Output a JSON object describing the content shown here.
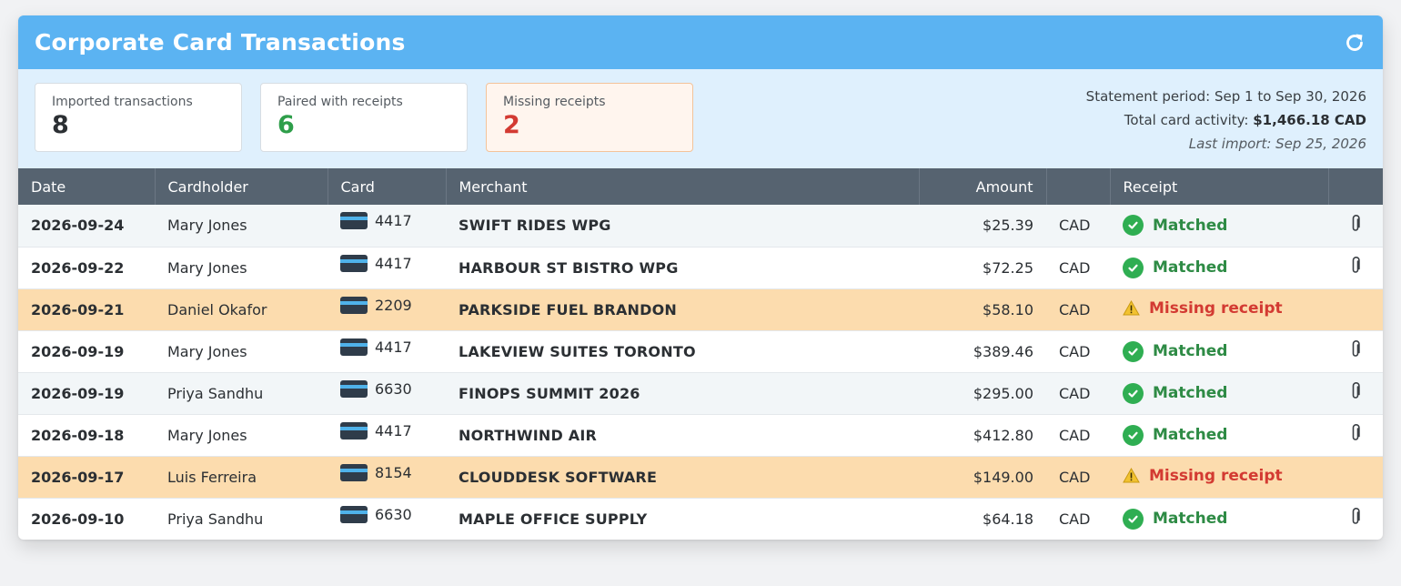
{
  "header": {
    "title": "Corporate Card Transactions"
  },
  "summary": {
    "imported": {
      "label": "Imported transactions",
      "value": "8"
    },
    "paired": {
      "label": "Paired with receipts",
      "value": "6"
    },
    "missing": {
      "label": "Missing receipts",
      "value": "2"
    },
    "period_label": "Statement period: Sep 1 to Sep 30, 2026",
    "total_label": "Total card activity: ",
    "total_value": "$1,466.18 CAD",
    "last_import": "Last import: Sep 25, 2026"
  },
  "table": {
    "columns": [
      "Date",
      "Cardholder",
      "Card",
      "Merchant",
      "Amount",
      "",
      "Receipt",
      ""
    ],
    "rows": [
      {
        "date": "2026-09-24",
        "cardholder": "Mary Jones",
        "card": "4417",
        "merchant": "SWIFT RIDES WPG",
        "amount": "$25.39",
        "currency": "CAD",
        "receipt": "Matched",
        "status": "matched"
      },
      {
        "date": "2026-09-22",
        "cardholder": "Mary Jones",
        "card": "4417",
        "merchant": "HARBOUR ST BISTRO WPG",
        "amount": "$72.25",
        "currency": "CAD",
        "receipt": "Matched",
        "status": "matched"
      },
      {
        "date": "2026-09-21",
        "cardholder": "Daniel Okafor",
        "card": "2209",
        "merchant": "PARKSIDE FUEL BRANDON",
        "amount": "$58.10",
        "currency": "CAD",
        "receipt": "Missing receipt",
        "status": "missing"
      },
      {
        "date": "2026-09-19",
        "cardholder": "Mary Jones",
        "card": "4417",
        "merchant": "LAKEVIEW SUITES TORONTO",
        "amount": "$389.46",
        "currency": "CAD",
        "receipt": "Matched",
        "status": "matched"
      },
      {
        "date": "2026-09-19",
        "cardholder": "Priya Sandhu",
        "card": "6630",
        "merchant": "FINOPS SUMMIT 2026",
        "amount": "$295.00",
        "currency": "CAD",
        "receipt": "Matched",
        "status": "matched"
      },
      {
        "date": "2026-09-18",
        "cardholder": "Mary Jones",
        "card": "4417",
        "merchant": "NORTHWIND AIR",
        "amount": "$412.80",
        "currency": "CAD",
        "receipt": "Matched",
        "status": "matched"
      },
      {
        "date": "2026-09-17",
        "cardholder": "Luis Ferreira",
        "card": "8154",
        "merchant": "CLOUDDESK SOFTWARE",
        "amount": "$149.00",
        "currency": "CAD",
        "receipt": "Missing receipt",
        "status": "missing"
      },
      {
        "date": "2026-09-10",
        "cardholder": "Priya Sandhu",
        "card": "6630",
        "merchant": "MAPLE OFFICE SUPPLY",
        "amount": "$64.18",
        "currency": "CAD",
        "receipt": "Matched",
        "status": "matched"
      }
    ]
  },
  "colors": {
    "accent": "#5bb3f2",
    "matched": "#2e8b45",
    "missing": "#d33a32",
    "missing_row": "#fcdcae"
  },
  "icons": {
    "refresh": "refresh-icon",
    "card": "credit-card-icon",
    "matched": "check-circle-icon",
    "missing": "warning-icon",
    "attachment": "paperclip-icon"
  }
}
